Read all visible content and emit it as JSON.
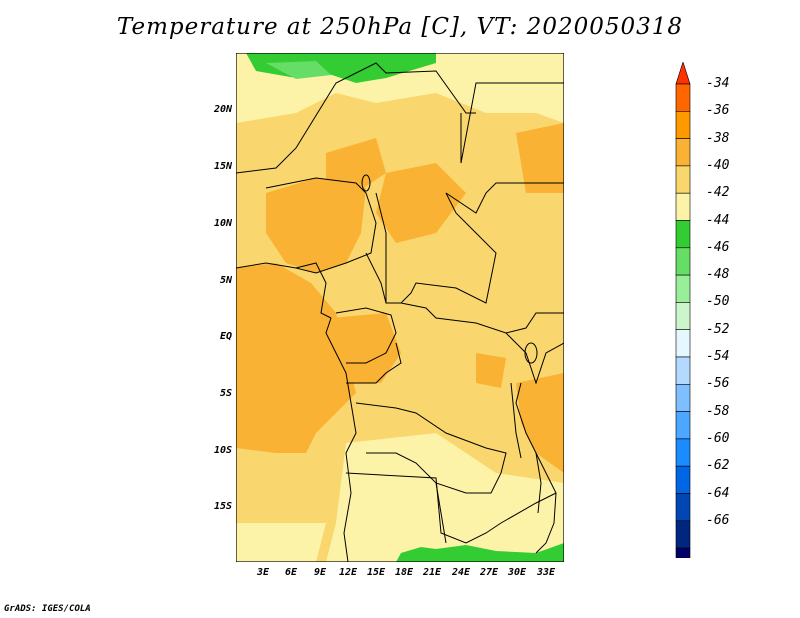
{
  "title": "Temperature at 250hPa [C], VT: 2020050318",
  "footer": "GrADS: IGES/COLA",
  "map": {
    "lat_labels": [
      "20N",
      "15N",
      "10N",
      "5N",
      "EQ",
      "5S",
      "10S",
      "15S"
    ],
    "lon_labels": [
      "3E",
      "6E",
      "9E",
      "12E",
      "15E",
      "18E",
      "21E",
      "24E",
      "27E",
      "30E",
      "33E"
    ]
  },
  "colorbar": {
    "labels": [
      "-34",
      "-36",
      "-38",
      "-40",
      "-42",
      "-44",
      "-46",
      "-48",
      "-50",
      "-52",
      "-54",
      "-56",
      "-58",
      "-60",
      "-62",
      "-64",
      "-66"
    ],
    "colors": [
      "#ff3300",
      "#ff6600",
      "#ff9900",
      "#f9b233",
      "#f9d66e",
      "#fdf3a8",
      "#33cc33",
      "#66dd66",
      "#99ee99",
      "#ccf5cc",
      "#e6f7ff",
      "#b3d9ff",
      "#80bfff",
      "#4da6ff",
      "#1a8cff",
      "#0066e6",
      "#0047b3",
      "#00267f",
      "#000066",
      "#ddddff"
    ]
  }
}
